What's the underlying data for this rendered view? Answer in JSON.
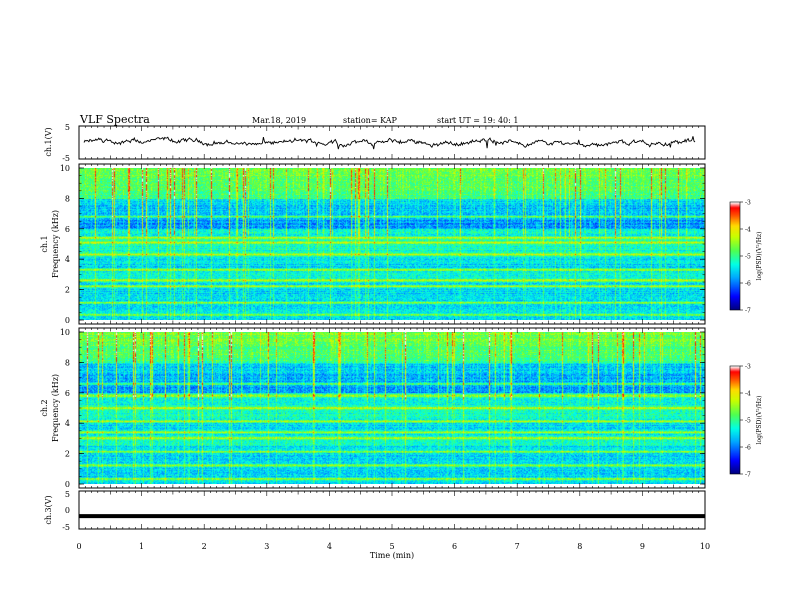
{
  "header": {
    "title": "VLF Spectra",
    "date": "Mar.18, 2019",
    "station": "station= KAP",
    "start": "start  UT =   19: 40: 1"
  },
  "colors": {
    "colormap": [
      "#000080",
      "#0000ff",
      "#00bfff",
      "#00ffbf",
      "#7fff00",
      "#ffff00",
      "#ff7f00",
      "#ff0000",
      "#ffffff"
    ]
  },
  "chart_data": [
    {
      "type": "line",
      "ylabel": "ch.1(V)",
      "ylim": [
        -5,
        5
      ],
      "yticks": [
        "5",
        "-5"
      ],
      "xlim": [
        0,
        10
      ],
      "description_series": "voltage waveform, values roughly between -2 and 2 V",
      "series": [
        {
          "values_range": [
            -2,
            2
          ]
        }
      ]
    },
    {
      "type": "heatmap",
      "ylabel": "ch.1\nFrequency (kHz)",
      "ylabel_lines": [
        "ch.1",
        "Frequency (kHz)"
      ],
      "ylim": [
        0,
        10
      ],
      "yticks": [
        "0",
        "2",
        "4",
        "6",
        "8",
        "10"
      ],
      "xlim": [
        0,
        10
      ],
      "colorbar": {
        "label": "log(PSD)(V²/Hz)",
        "range": [
          -7,
          -3
        ],
        "ticks": [
          "-3",
          "-4",
          "-5",
          "-6",
          "-7"
        ]
      },
      "bands_khz": [
        0.3,
        1.1,
        2.2,
        2.6,
        3.3,
        4.3,
        5.1,
        5.4,
        6.8
      ]
    },
    {
      "type": "heatmap",
      "ylabel": "ch.2\nFrequency (kHz)",
      "ylabel_lines": [
        "ch.2",
        "Frequency (kHz)"
      ],
      "ylim": [
        0,
        10
      ],
      "yticks": [
        "0",
        "2",
        "4",
        "6",
        "8",
        "10"
      ],
      "xlim": [
        0,
        10
      ],
      "colorbar": {
        "label": "log(PSD)(V²/Hz)",
        "range": [
          -7,
          -3
        ],
        "ticks": [
          "-3",
          "-4",
          "-5",
          "-6",
          "-7"
        ]
      },
      "bands_khz": [
        0.3,
        1.2,
        2.1,
        3.0,
        3.4,
        4.1,
        5.0,
        5.8,
        6.6
      ]
    },
    {
      "type": "line",
      "ylabel": "ch.3(V)",
      "ylim": [
        -5,
        5
      ],
      "yticks": [
        "5",
        "0",
        "-5"
      ],
      "xlim": [
        0,
        10
      ],
      "series": [
        {
          "constant": -1.6
        }
      ]
    }
  ],
  "xaxis": {
    "label": "Time  (min)",
    "ticks": [
      "0",
      "1",
      "2",
      "3",
      "4",
      "5",
      "6",
      "7",
      "8",
      "9",
      "10"
    ]
  }
}
